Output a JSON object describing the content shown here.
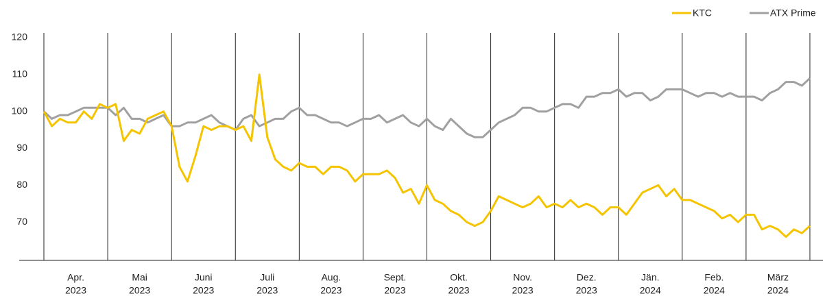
{
  "chart_data": {
    "type": "line",
    "months": [
      "Apr.",
      "Mai",
      "Juni",
      "Juli",
      "Aug.",
      "Sept.",
      "Okt.",
      "Nov.",
      "Dez.",
      "Jän.",
      "Feb.",
      "März"
    ],
    "years": [
      "2023",
      "2023",
      "2023",
      "2023",
      "2023",
      "2023",
      "2023",
      "2023",
      "2023",
      "2024",
      "2024",
      "2024"
    ],
    "ylim": [
      60,
      120
    ],
    "yticks": [
      70,
      80,
      90,
      100,
      110,
      120
    ],
    "legend": "top-right",
    "series": [
      {
        "name": "KTC",
        "color": "#f5c400",
        "values": [
          100,
          96,
          98,
          97,
          97,
          100,
          98,
          102,
          101,
          102,
          92,
          95,
          94,
          98,
          99,
          100,
          96,
          85,
          81,
          88,
          96,
          95,
          96,
          96,
          95,
          96,
          92,
          110,
          93,
          87,
          85,
          84,
          86,
          85,
          85,
          83,
          85,
          85,
          84,
          81,
          83,
          83,
          83,
          84,
          82,
          78,
          79,
          75,
          80,
          76,
          75,
          73,
          72,
          70,
          69,
          70,
          73,
          77,
          76,
          75,
          74,
          75,
          77,
          74,
          75,
          74,
          76,
          74,
          75,
          74,
          72,
          74,
          74,
          72,
          75,
          78,
          79,
          80,
          77,
          79,
          76,
          76,
          75,
          74,
          73,
          71,
          72,
          70,
          72,
          72,
          68,
          69,
          68,
          66,
          68,
          67,
          69
        ]
      },
      {
        "name": "ATX Prime",
        "color": "#a0a0a0",
        "values": [
          100,
          98,
          99,
          99,
          100,
          101,
          101,
          101,
          101,
          99,
          101,
          98,
          98,
          97,
          98,
          99,
          96,
          96,
          97,
          97,
          98,
          99,
          97,
          96,
          95,
          98,
          99,
          96,
          97,
          98,
          98,
          100,
          101,
          99,
          99,
          98,
          97,
          97,
          96,
          97,
          98,
          98,
          99,
          97,
          98,
          99,
          97,
          96,
          98,
          96,
          95,
          98,
          96,
          94,
          93,
          93,
          95,
          97,
          98,
          99,
          101,
          101,
          100,
          100,
          101,
          102,
          102,
          101,
          104,
          104,
          105,
          105,
          106,
          104,
          105,
          105,
          103,
          104,
          106,
          106,
          106,
          105,
          104,
          105,
          105,
          104,
          105,
          104,
          104,
          104,
          103,
          105,
          106,
          108,
          108,
          107,
          109
        ]
      }
    ]
  }
}
